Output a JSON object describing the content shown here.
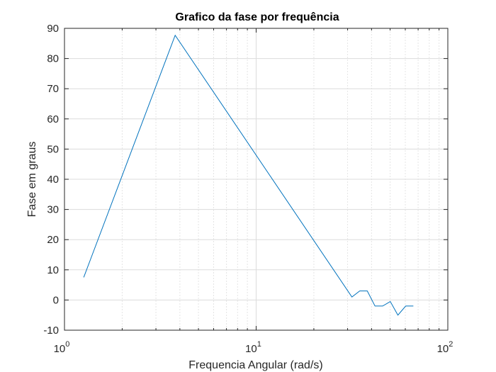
{
  "chart_data": {
    "type": "line",
    "title": "Grafico da fase por frequência",
    "xlabel": "Frequencia Angular (rad/s)",
    "ylabel": "Fase em graus",
    "xscale": "log",
    "xlim": [
      1,
      100
    ],
    "ylim": [
      -10,
      90
    ],
    "xticks": [
      1,
      10,
      100
    ],
    "xtick_labels": [
      {
        "base": "10",
        "exp": "0"
      },
      {
        "base": "10",
        "exp": "1"
      },
      {
        "base": "10",
        "exp": "2"
      }
    ],
    "yticks": [
      -10,
      0,
      10,
      20,
      30,
      40,
      50,
      60,
      70,
      80,
      90
    ],
    "grid": true,
    "minor_grid": true,
    "series_color": "#0072BD",
    "series": [
      {
        "x": [
          1.26,
          3.78,
          31.6,
          34.7,
          38.0,
          41.7,
          45.7,
          50.1,
          54.9,
          60.3,
          66.1
        ],
        "y": [
          7.5,
          87.7,
          1.0,
          3.0,
          3.0,
          -2.0,
          -2.0,
          -0.5,
          -5.0,
          -2.0,
          -2.0
        ]
      }
    ]
  }
}
